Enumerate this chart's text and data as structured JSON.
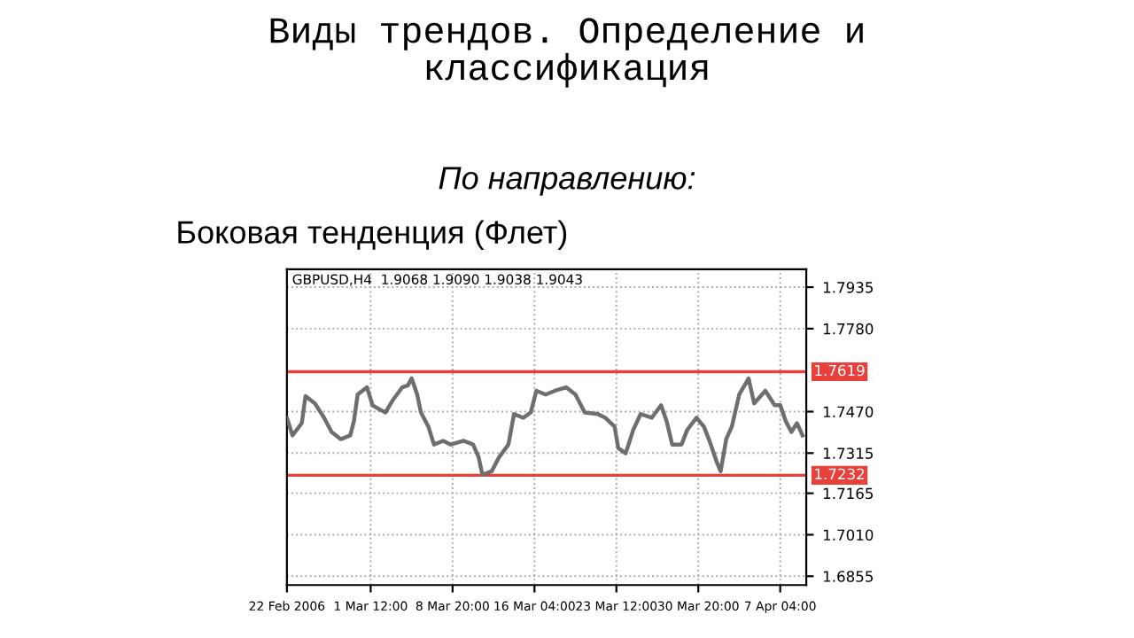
{
  "chart_data": {
    "type": "line",
    "title": "Виды трендов. Определение и\nклассификация",
    "subtitle": "По направлению:",
    "annotations": [
      "Боковая тенденция (Флет)",
      "GBPUSD,H4  1.9068 1.9090 1.9038 1.9043"
    ],
    "series": [
      {
        "color": "#6e6e6e",
        "x": [
          "2006-02-22T00:00",
          "2006-02-22T12:00",
          "2006-02-23T08:00",
          "2006-02-23T16:00",
          "2006-02-24T12:00",
          "2006-02-25T08:00",
          "2006-02-26T00:00",
          "2006-02-26T20:00",
          "2006-02-27T16:00",
          "2006-02-28T00:00",
          "2006-02-28T08:00",
          "2006-03-01T04:00",
          "2006-03-01T16:00",
          "2006-03-02T04:00",
          "2006-03-02T20:00",
          "2006-03-03T12:00",
          "2006-03-04T08:00",
          "2006-03-04T20:00",
          "2006-03-05T04:00",
          "2006-03-05T16:00",
          "2006-03-06T00:00",
          "2006-03-06T16:00",
          "2006-03-07T04:00",
          "2006-03-08T00:00",
          "2006-03-08T16:00",
          "2006-03-09T20:00",
          "2006-03-10T16:00",
          "2006-03-11T04:00",
          "2006-03-11T12:00",
          "2006-03-12T08:00",
          "2006-03-13T00:00",
          "2006-03-13T20:00",
          "2006-03-14T08:00",
          "2006-03-15T04:00",
          "2006-03-15T20:00",
          "2006-03-16T08:00",
          "2006-03-17T04:00",
          "2006-03-18T00:00",
          "2006-03-19T00:00",
          "2006-03-19T20:00",
          "2006-03-20T16:00",
          "2006-03-21T20:00",
          "2006-03-22T12:00",
          "2006-03-23T08:00",
          "2006-03-23T16:00",
          "2006-03-24T08:00",
          "2006-03-25T00:00",
          "2006-03-25T16:00",
          "2006-03-26T16:00",
          "2006-03-27T12:00",
          "2006-03-28T00:00",
          "2006-03-28T12:00",
          "2006-03-29T08:00",
          "2006-03-29T20:00",
          "2006-03-30T16:00",
          "2006-03-31T08:00",
          "2006-03-31T20:00",
          "2006-04-01T12:00",
          "2006-04-01T20:00",
          "2006-04-02T08:00",
          "2006-04-02T20:00",
          "2006-04-03T12:00",
          "2006-04-04T08:00",
          "2006-04-04T20:00",
          "2006-04-05T20:00",
          "2006-04-06T16:00",
          "2006-04-07T04:00",
          "2006-04-07T16:00",
          "2006-04-08T04:00",
          "2006-04-08T16:00",
          "2006-04-09T04:00"
        ],
        "values": [
          1.7447,
          1.7381,
          1.7427,
          1.7528,
          1.7501,
          1.7447,
          1.7394,
          1.7367,
          1.7381,
          1.7434,
          1.7534,
          1.7561,
          1.7494,
          1.7481,
          1.7467,
          1.7514,
          1.7561,
          1.7568,
          1.7594,
          1.7534,
          1.7467,
          1.7414,
          1.7347,
          1.7361,
          1.7347,
          1.7361,
          1.7347,
          1.73,
          1.7234,
          1.7247,
          1.73,
          1.7347,
          1.7461,
          1.7447,
          1.7467,
          1.7548,
          1.7534,
          1.7548,
          1.7561,
          1.7534,
          1.7467,
          1.7461,
          1.7447,
          1.7414,
          1.7334,
          1.7314,
          1.7401,
          1.7461,
          1.7447,
          1.7494,
          1.7434,
          1.7347,
          1.7347,
          1.7401,
          1.7447,
          1.7414,
          1.7361,
          1.728,
          1.7247,
          1.7367,
          1.7414,
          1.7534,
          1.7594,
          1.7501,
          1.7548,
          1.7494,
          1.7494,
          1.7434,
          1.7394,
          1.7427,
          1.7381
        ]
      }
    ],
    "xlim": [
      "2006-02-22T00:00",
      "2006-04-09T12:00"
    ],
    "xticks": [
      {
        "value": "2006-02-22T00:00",
        "label": "22 Feb 2006"
      },
      {
        "value": "2006-03-01T12:00",
        "label": "1 Mar 12:00"
      },
      {
        "value": "2006-03-08T20:00",
        "label": "8 Mar 20:00"
      },
      {
        "value": "2006-03-16T04:00",
        "label": "16 Mar 04:00"
      },
      {
        "value": "2006-03-23T12:00",
        "label": "23 Mar 12:00"
      },
      {
        "value": "2006-03-30T20:00",
        "label": "30 Mar 20:00"
      },
      {
        "value": "2006-04-07T04:00",
        "label": "7 Apr 04:00"
      }
    ],
    "ylim": [
      1.6822,
      1.8002
    ],
    "yticks": [
      {
        "value": 1.7935,
        "label": "1.7935"
      },
      {
        "value": 1.778,
        "label": "1.7780"
      },
      {
        "value": 1.747,
        "label": "1.7470"
      },
      {
        "value": 1.7315,
        "label": "1.7315"
      },
      {
        "value": 1.7165,
        "label": "1.7165"
      },
      {
        "value": 1.701,
        "label": "1.7010"
      },
      {
        "value": 1.6855,
        "label": "1.6855"
      }
    ],
    "ref_lines": [
      {
        "axis": "y",
        "value": 1.7619,
        "label": "1.7619",
        "color": "#e8403a"
      },
      {
        "axis": "y",
        "value": 1.7232,
        "label": "1.7232",
        "color": "#e8403a"
      }
    ],
    "grid": true,
    "legend": false,
    "marker": "none",
    "line_style": "solid"
  }
}
